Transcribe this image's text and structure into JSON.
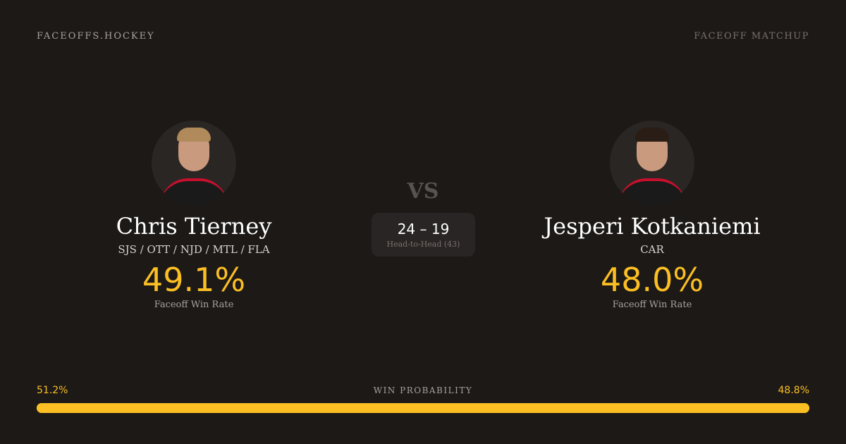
{
  "header": {
    "brand": "FACEOFFS.HOCKEY",
    "tag": "FACEOFF MATCHUP"
  },
  "players": [
    {
      "name": "Chris Tierney",
      "teams": "SJS / OTT / NJD / MTL / FLA",
      "win_rate": "49.1%",
      "win_rate_label": "Faceoff Win Rate",
      "hair_color": "#b08a5a"
    },
    {
      "name": "Jesperi Kotkaniemi",
      "teams": "CAR",
      "win_rate": "48.0%",
      "win_rate_label": "Faceoff Win Rate",
      "hair_color": "#2a1d15"
    }
  ],
  "vs": "VS",
  "head_to_head": {
    "score": "24 – 19",
    "label": "Head-to-Head (43)"
  },
  "win_probability": {
    "label": "WIN PROBABILITY",
    "left": "51.2%",
    "right": "48.8%",
    "left_value": 51.2,
    "right_value": 48.8
  },
  "colors": {
    "accent": "#fbbf24",
    "background": "#1c1917"
  }
}
